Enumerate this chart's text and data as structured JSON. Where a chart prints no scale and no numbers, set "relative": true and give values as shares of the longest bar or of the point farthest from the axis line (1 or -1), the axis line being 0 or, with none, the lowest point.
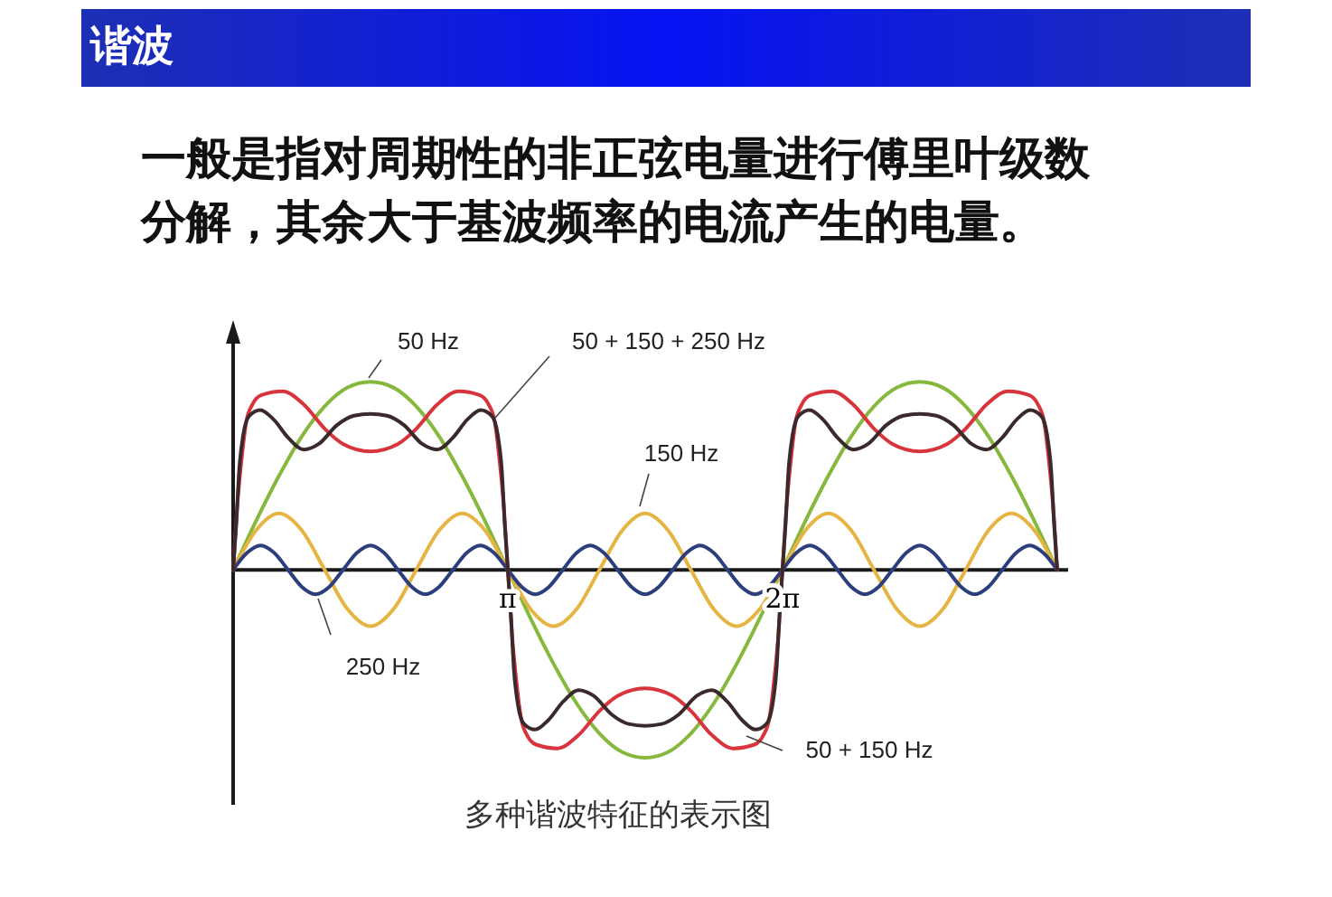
{
  "chart_data": {
    "type": "line",
    "title": "谐波",
    "subtitle": "一般是指对周期性的非正弦电量进行傅里叶级数分解，其余大于基波频率的电流产生的电量。",
    "annotations": [
      "多种谐波特征的表示图"
    ],
    "relative": true,
    "xlim": [
      0,
      9.55
    ],
    "xticks": [
      {
        "value": 3.1416,
        "label": "π"
      },
      {
        "value": 6.2832,
        "label": "2π"
      }
    ],
    "grid": false,
    "legend": false,
    "marker": "none",
    "line_style": "solid",
    "series": [
      {
        "name": "50 Hz",
        "color": "#86b83e",
        "x": [
          0,
          0.262,
          0.524,
          0.785,
          1.047,
          1.309,
          1.571,
          1.833,
          2.094,
          2.356,
          2.618,
          2.88,
          3.142,
          3.403,
          3.665,
          3.927,
          4.189,
          4.451,
          4.712,
          4.974,
          5.236,
          5.498,
          5.76,
          6.021,
          6.283,
          6.545,
          6.807,
          7.069,
          7.33,
          7.592,
          7.854,
          8.116,
          8.378,
          8.639,
          8.901,
          9.163,
          9.425
        ],
        "values": [
          0,
          0.26,
          0.5,
          0.71,
          0.87,
          0.97,
          1,
          0.97,
          0.87,
          0.71,
          0.5,
          0.26,
          0,
          -0.26,
          -0.5,
          -0.71,
          -0.87,
          -0.97,
          -1,
          -0.97,
          -0.87,
          -0.71,
          -0.5,
          -0.26,
          0,
          0.26,
          0.5,
          0.71,
          0.87,
          0.97,
          1,
          0.97,
          0.87,
          0.71,
          0.5,
          0.26,
          0
        ]
      },
      {
        "name": "150 Hz",
        "color": "#e6b443",
        "x": [
          0,
          0.262,
          0.524,
          0.785,
          1.047,
          1.309,
          1.571,
          1.833,
          2.094,
          2.356,
          2.618,
          2.88,
          3.142,
          3.403,
          3.665,
          3.927,
          4.189,
          4.451,
          4.712,
          4.974,
          5.236,
          5.498,
          5.76,
          6.021,
          6.283,
          6.545,
          6.807,
          7.069,
          7.33,
          7.592,
          7.854,
          8.116,
          8.378,
          8.639,
          8.901,
          9.163,
          9.425
        ],
        "values": [
          0,
          0.21,
          0.3,
          0.21,
          0,
          -0.21,
          -0.3,
          -0.21,
          0,
          0.21,
          0.3,
          0.21,
          0,
          -0.21,
          -0.3,
          -0.21,
          0,
          0.21,
          0.3,
          0.21,
          0,
          -0.21,
          -0.3,
          -0.21,
          0,
          0.21,
          0.3,
          0.21,
          0,
          -0.21,
          -0.3,
          -0.21,
          0,
          0.21,
          0.3,
          0.21,
          0
        ]
      },
      {
        "name": "250 Hz",
        "color": "#2c3f7c",
        "x": [
          0,
          0.157,
          0.314,
          0.471,
          0.628,
          0.785,
          0.942,
          1.1,
          1.257,
          1.414,
          1.571,
          1.728,
          1.885,
          2.042,
          2.199,
          2.356,
          2.513,
          2.67,
          2.827,
          2.985,
          3.142,
          3.299,
          3.456,
          3.613,
          3.77,
          3.927,
          4.084,
          4.241,
          4.398,
          4.555,
          4.712,
          4.869,
          5.027,
          5.184,
          5.341,
          5.498,
          5.655,
          5.812,
          5.969,
          6.126,
          6.283,
          6.44,
          6.597,
          6.754,
          6.912,
          7.069,
          7.226,
          7.383,
          7.54,
          7.697,
          7.854,
          8.011,
          8.168,
          8.325,
          8.482,
          8.639,
          8.796,
          8.954,
          9.111,
          9.268,
          9.425
        ],
        "values": [
          0,
          0.09,
          0.13,
          0.09,
          0,
          -0.09,
          -0.13,
          -0.09,
          0,
          0.09,
          0.13,
          0.09,
          0,
          -0.09,
          -0.13,
          -0.09,
          0,
          0.09,
          0.13,
          0.09,
          0,
          -0.09,
          -0.13,
          -0.09,
          0,
          0.09,
          0.13,
          0.09,
          0,
          -0.09,
          -0.13,
          -0.09,
          0,
          0.09,
          0.13,
          0.09,
          0,
          -0.09,
          -0.13,
          -0.09,
          0,
          0.09,
          0.13,
          0.09,
          0,
          -0.09,
          -0.13,
          -0.09,
          0,
          0.09,
          0.13,
          0.09,
          0,
          -0.09,
          -0.13,
          -0.09,
          0,
          0.09,
          0.13,
          0.09,
          0
        ]
      },
      {
        "name": "50 + 150 Hz",
        "color": "#d8343c",
        "x": [
          0,
          0.047,
          0.097,
          0.151,
          0.22,
          0.324,
          0.565,
          0.807,
          1.049,
          1.257,
          1.571,
          1.885,
          2.093,
          2.335,
          2.577,
          2.818,
          2.922,
          2.991,
          3.045,
          3.095,
          3.142,
          3.189,
          3.239,
          3.293,
          3.362,
          3.466,
          3.707,
          3.949,
          4.191,
          4.399,
          4.712,
          5.027,
          5.235,
          5.477,
          5.719,
          5.96,
          6.064,
          6.133,
          6.187,
          6.237,
          6.283,
          6.33,
          6.38,
          6.434,
          6.503,
          6.607,
          6.848,
          7.09,
          7.332,
          7.54,
          7.854,
          8.168,
          8.376,
          8.618,
          8.86,
          9.101,
          9.205,
          9.274,
          9.328,
          9.378,
          9.425
        ],
        "values": [
          0,
          0.34,
          0.59,
          0.79,
          0.88,
          0.93,
          0.95,
          0.88,
          0.75,
          0.67,
          0.63,
          0.67,
          0.75,
          0.88,
          0.95,
          0.93,
          0.88,
          0.79,
          0.59,
          0.34,
          0,
          -0.34,
          -0.59,
          -0.79,
          -0.88,
          -0.93,
          -0.95,
          -0.88,
          -0.75,
          -0.67,
          -0.63,
          -0.67,
          -0.75,
          -0.88,
          -0.95,
          -0.93,
          -0.88,
          -0.79,
          -0.59,
          -0.34,
          0,
          0.34,
          0.59,
          0.79,
          0.88,
          0.93,
          0.95,
          0.88,
          0.75,
          0.67,
          0.63,
          0.67,
          0.75,
          0.88,
          0.95,
          0.93,
          0.88,
          0.79,
          0.59,
          0.34,
          0
        ]
      },
      {
        "name": "50 + 150 + 250 Hz",
        "color": "#3a2a2c",
        "x": [
          0,
          0.035,
          0.069,
          0.116,
          0.185,
          0.311,
          0.462,
          0.635,
          0.807,
          0.98,
          1.188,
          1.382,
          1.571,
          1.76,
          1.954,
          2.162,
          2.335,
          2.507,
          2.68,
          2.831,
          2.957,
          3.026,
          3.073,
          3.107,
          3.142,
          3.177,
          3.211,
          3.258,
          3.327,
          3.453,
          3.604,
          3.777,
          3.949,
          4.122,
          4.33,
          4.524,
          4.712,
          4.902,
          5.096,
          5.304,
          5.477,
          5.649,
          5.822,
          5.973,
          6.099,
          6.168,
          6.215,
          6.249,
          6.283,
          6.318,
          6.352,
          6.399,
          6.468,
          6.594,
          6.745,
          6.918,
          7.09,
          7.263,
          7.471,
          7.665,
          7.854,
          8.043,
          8.237,
          8.445,
          8.618,
          8.79,
          8.963,
          9.114,
          9.24,
          9.309,
          9.356,
          9.39,
          9.425
        ],
        "values": [
          0,
          0.24,
          0.53,
          0.72,
          0.82,
          0.85,
          0.8,
          0.7,
          0.64,
          0.67,
          0.77,
          0.82,
          0.83,
          0.82,
          0.77,
          0.67,
          0.64,
          0.7,
          0.8,
          0.85,
          0.82,
          0.72,
          0.53,
          0.24,
          0,
          -0.24,
          -0.53,
          -0.72,
          -0.82,
          -0.85,
          -0.8,
          -0.7,
          -0.64,
          -0.67,
          -0.77,
          -0.82,
          -0.83,
          -0.82,
          -0.77,
          -0.67,
          -0.64,
          -0.7,
          -0.8,
          -0.85,
          -0.82,
          -0.72,
          -0.53,
          -0.24,
          0,
          0.24,
          0.53,
          0.72,
          0.82,
          0.85,
          0.8,
          0.7,
          0.64,
          0.67,
          0.77,
          0.82,
          0.83,
          0.82,
          0.77,
          0.67,
          0.64,
          0.7,
          0.8,
          0.85,
          0.82,
          0.72,
          0.53,
          0.24,
          0
        ]
      }
    ]
  }
}
